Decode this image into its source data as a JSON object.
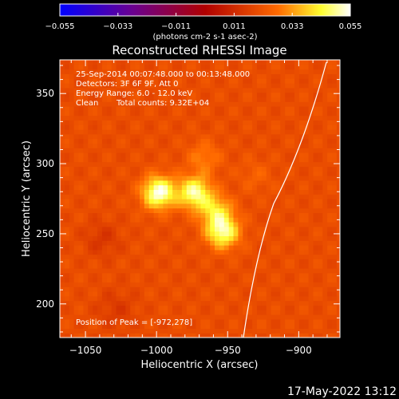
{
  "chart_data": {
    "type": "heatmap",
    "title": "Reconstructed RHESSI Image",
    "xlabel": "Heliocentric X (arcsec)",
    "ylabel": "Heliocentric Y (arcsec)",
    "xlim": [
      -1068,
      -871
    ],
    "ylim": [
      176,
      374
    ],
    "xticks": [
      -1050,
      -1000,
      -950,
      -900
    ],
    "yticks": [
      200,
      250,
      300,
      350
    ],
    "colorbar": {
      "ticks": [
        -0.055,
        -0.033,
        -0.011,
        0.011,
        0.033,
        0.055
      ],
      "range": [
        -0.055,
        0.055
      ],
      "unit_label": "(photons cm-2 s-1 asec-2)",
      "colormap": "blue-purple-red-yellow-white"
    },
    "sources": [
      {
        "x": -1000,
        "y": 278,
        "value": 0.055
      },
      {
        "x": -975,
        "y": 278,
        "value": 0.05
      },
      {
        "x": -960,
        "y": 265,
        "value": 0.04
      },
      {
        "x": -955,
        "y": 250,
        "value": 0.05
      },
      {
        "x": -968,
        "y": 303,
        "value": 0.03
      },
      {
        "x": -932,
        "y": 290,
        "value": 0.025
      }
    ],
    "peak": [
      -972,
      278
    ],
    "annotations": {
      "time_range": "25-Sep-2014 00:07:48.000 to 00:13:48.000",
      "detectors": "Detectors: 3F 6F 9F, Att 0",
      "energy": "Energy Range: 6.0 - 12.0 keV",
      "method": "Clean",
      "counts": "Total counts: 9.32E+04",
      "peak_text": "Position of Peak = [-972,278]"
    },
    "timestamp": "17-May-2022 13:12"
  }
}
